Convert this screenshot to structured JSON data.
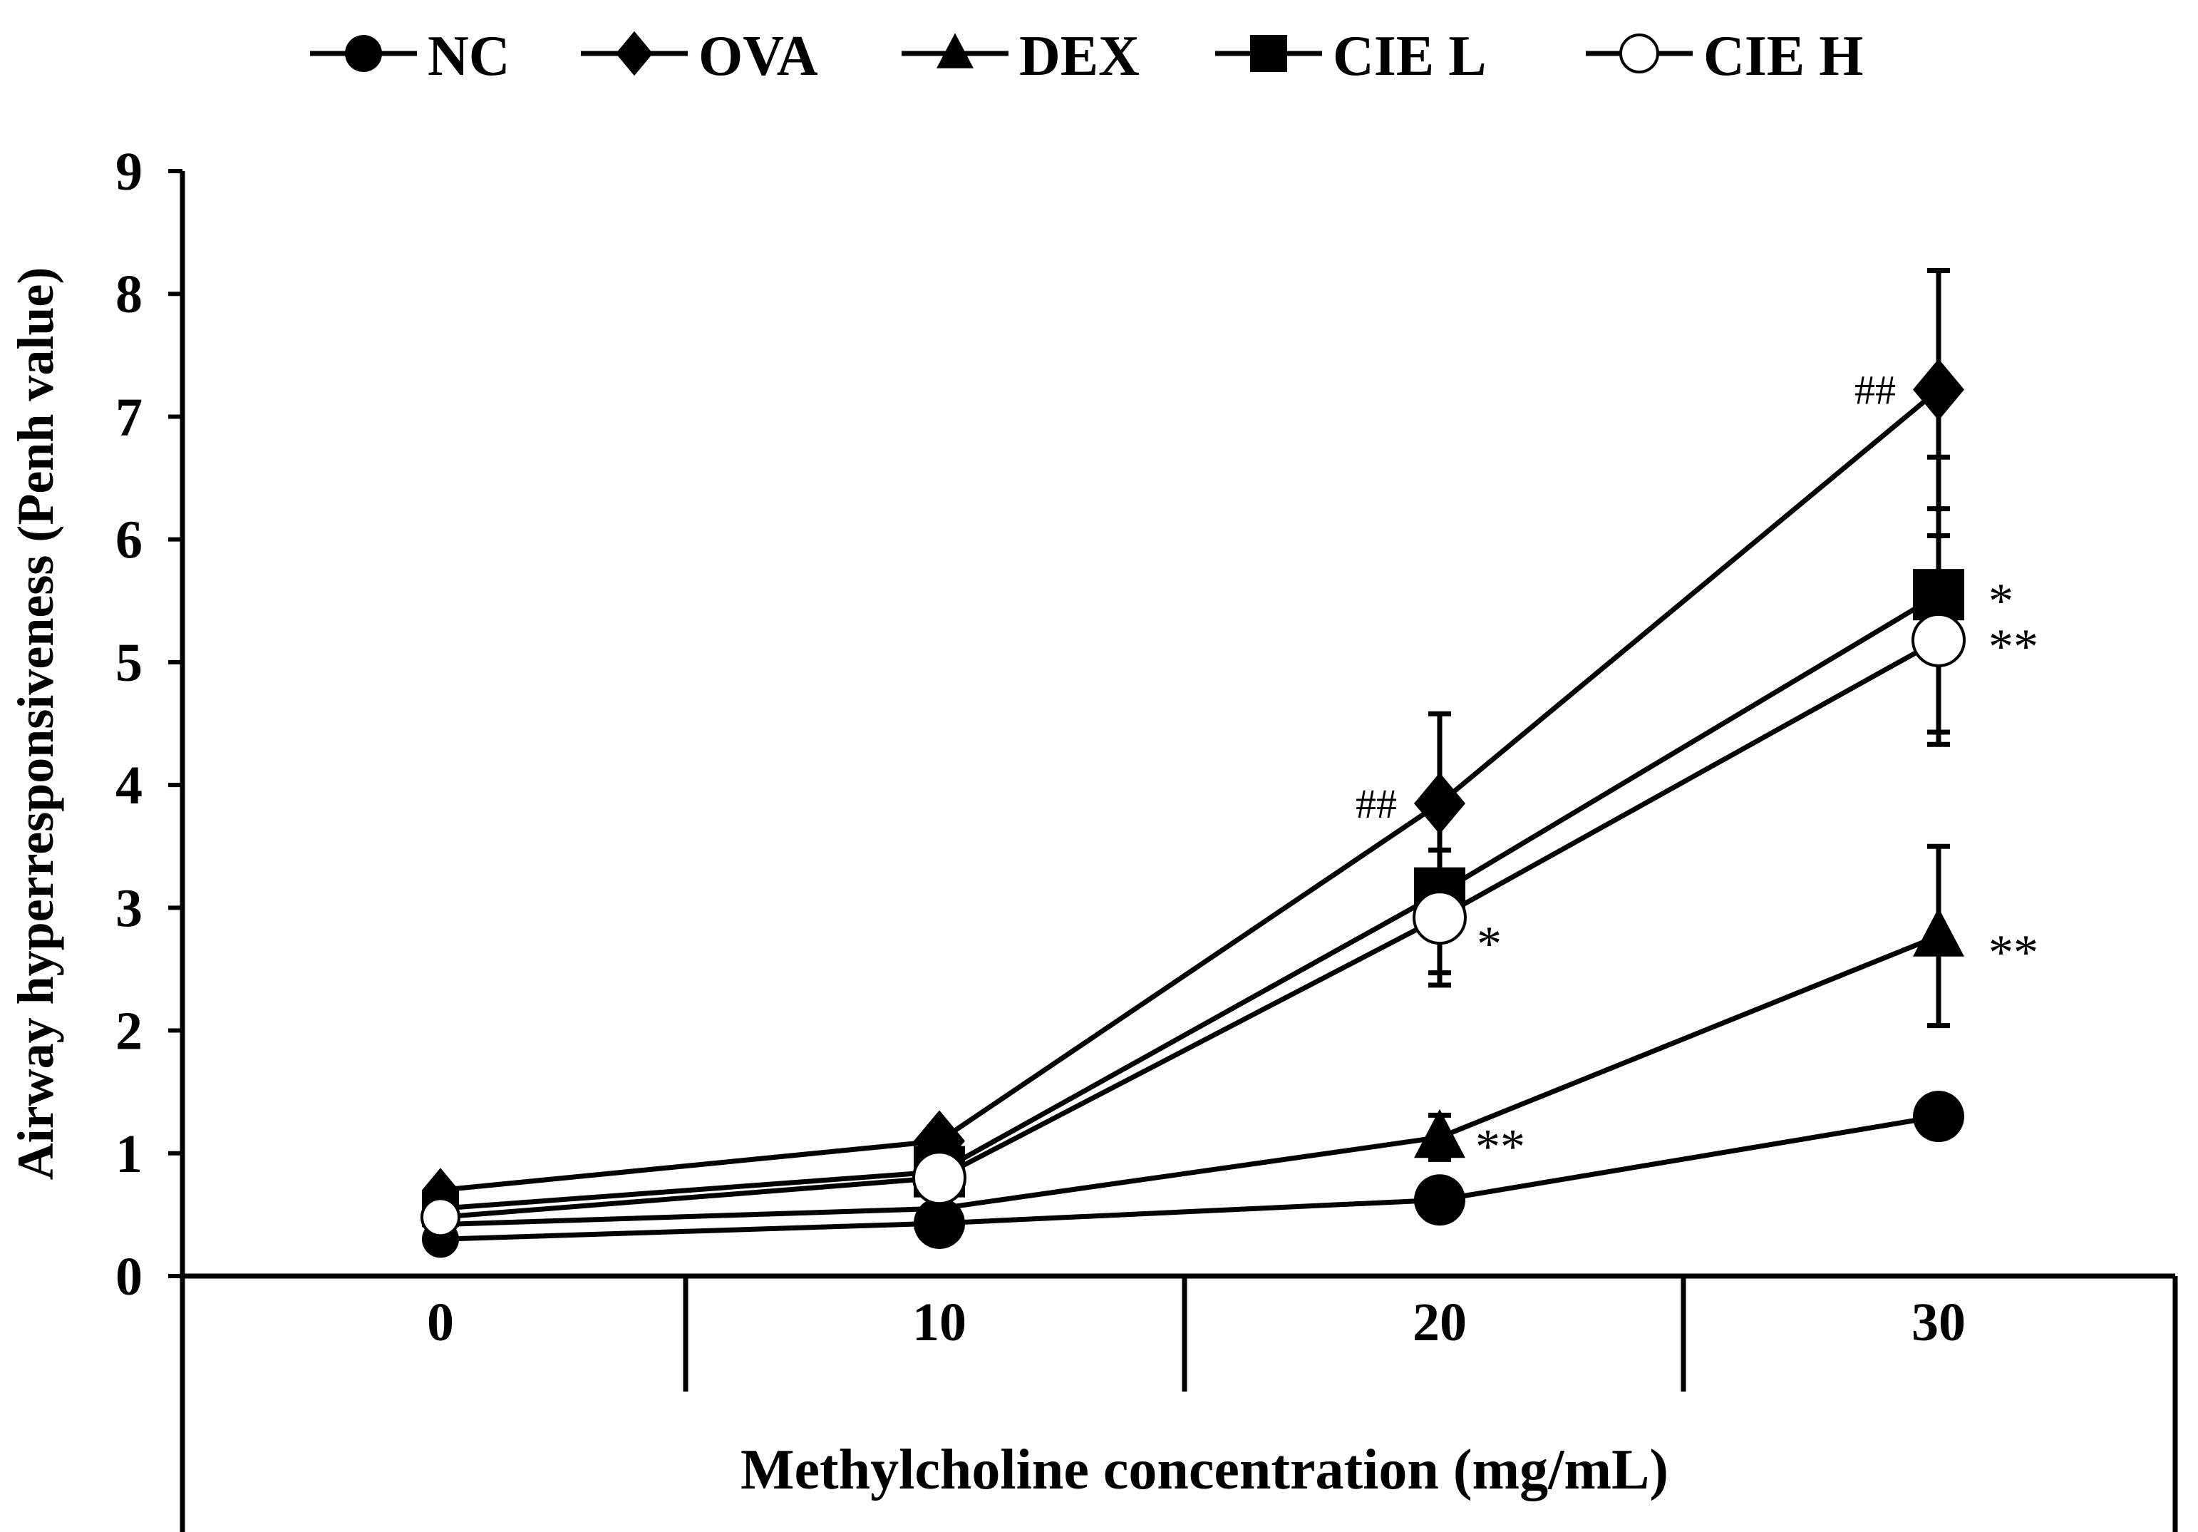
{
  "chart_data": {
    "type": "line",
    "title": "",
    "xlabel": "Methylcholine concentration (mg/mL)",
    "ylabel": "Airway hyperresponsiveness (Penh value)",
    "categories": [
      "0",
      "10",
      "20",
      "30"
    ],
    "ylim": [
      0,
      9
    ],
    "yticks": [
      "0",
      "1",
      "2",
      "3",
      "4",
      "5",
      "6",
      "7",
      "8",
      "9"
    ],
    "legend_position": "top",
    "series": [
      {
        "name": "NC",
        "marker": "filled-circle",
        "values": [
          0.3,
          0.43,
          0.62,
          1.3
        ],
        "errors": [
          0,
          0,
          0,
          0
        ],
        "annotations": [
          "",
          "",
          "",
          ""
        ]
      },
      {
        "name": "OVA",
        "marker": "filled-diamond",
        "values": [
          0.7,
          1.1,
          3.85,
          7.22
        ],
        "errors": [
          0,
          0.12,
          0.73,
          0.97
        ],
        "annotations": [
          "",
          "",
          "##",
          "##"
        ]
      },
      {
        "name": "DEX",
        "marker": "filled-triangle",
        "values": [
          0.42,
          0.55,
          1.13,
          2.77
        ],
        "errors": [
          0,
          0,
          0.18,
          0.73
        ],
        "annotations": [
          "",
          "",
          "**",
          "**"
        ]
      },
      {
        "name": "CIE L",
        "marker": "filled-square",
        "values": [
          0.55,
          0.85,
          3.12,
          5.55
        ],
        "errors": [
          0,
          0.1,
          0.65,
          1.12
        ],
        "annotations": [
          "",
          "",
          "",
          "*"
        ]
      },
      {
        "name": "CIE H",
        "marker": "open-circle",
        "values": [
          0.48,
          0.8,
          2.92,
          5.18
        ],
        "errors": [
          0,
          0.1,
          0.55,
          0.85
        ],
        "annotations": [
          "",
          "",
          "*",
          "**"
        ]
      }
    ]
  }
}
